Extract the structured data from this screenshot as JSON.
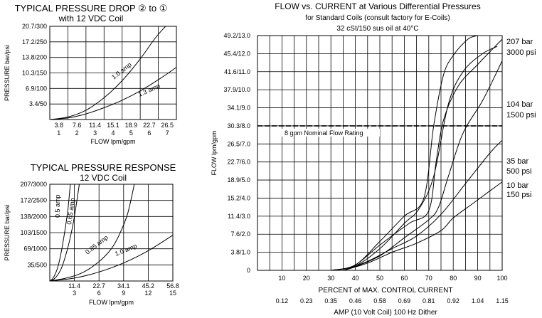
{
  "chart_data": [
    {
      "id": "pd",
      "type": "line",
      "title": "TYPICAL PRESSURE DROP ② to ①",
      "subtitle": "with 12 VDC Coil",
      "xlabel": "FLOW lpm/gpm",
      "ylabel": "PRESSURE bar/psi",
      "x_ticks_top": [
        "3.8",
        "7.6",
        "11.4",
        "15.1",
        "18.9",
        "22.7",
        "26.5"
      ],
      "x_ticks_bottom": [
        "1",
        "2",
        "3",
        "4",
        "5",
        "6",
        "7"
      ],
      "y_ticks": [
        "3.4/50",
        "6.9/100",
        "10.3/150",
        "13.8/200",
        "17.2/250",
        "20.7/300"
      ],
      "xlim": [
        0,
        7
      ],
      "ylim": [
        0,
        300
      ],
      "grid": true,
      "series": [
        {
          "name": "1.0 amp",
          "x": [
            0,
            1,
            2,
            3,
            4,
            5,
            5.8,
            6.4
          ],
          "y": [
            0,
            8,
            30,
            70,
            125,
            195,
            260,
            300
          ]
        },
        {
          "name": "1.3 amp",
          "x": [
            0,
            1,
            2,
            3,
            4,
            5,
            6,
            7
          ],
          "y": [
            0,
            5,
            18,
            38,
            62,
            92,
            128,
            168
          ]
        }
      ]
    },
    {
      "id": "pr",
      "type": "line",
      "title": "TYPICAL PRESSURE RESPONSE",
      "subtitle": "12 VDC Coil",
      "xlabel": "FLOW lpm/gpm",
      "ylabel": "PRESSURE bar/psi",
      "x_ticks_top": [
        "11.4",
        "22.7",
        "34.1",
        "45.2",
        "56.8"
      ],
      "x_ticks_bottom": [
        "3",
        "6",
        "9",
        "12",
        "15"
      ],
      "y_ticks": [
        "35/500",
        "69/1000",
        "103/1500",
        "138/2000",
        "172/2500",
        "207/3000"
      ],
      "xlim": [
        0,
        15
      ],
      "ylim": [
        0,
        3000
      ],
      "grid": true,
      "series": [
        {
          "name": "0.5 amp",
          "x": [
            0,
            0.3,
            0.6,
            1.0,
            1.4,
            1.8,
            2.2,
            2.5
          ],
          "y": [
            0,
            60,
            180,
            450,
            900,
            1500,
            2200,
            3000
          ]
        },
        {
          "name": "0.65 amp",
          "x": [
            0,
            0.5,
            1.0,
            1.5,
            2.0,
            2.5,
            3.0,
            3.6
          ],
          "y": [
            0,
            60,
            200,
            450,
            850,
            1350,
            2000,
            3000
          ]
        },
        {
          "name": "0.85 amp",
          "x": [
            0,
            2,
            4,
            6,
            7.5,
            8.5,
            9.5,
            10.3
          ],
          "y": [
            0,
            90,
            260,
            600,
            1000,
            1450,
            2100,
            3000
          ]
        },
        {
          "name": "1.0 amp",
          "x": [
            0,
            3,
            6,
            9,
            12,
            15
          ],
          "y": [
            0,
            90,
            280,
            560,
            940,
            1420
          ]
        }
      ]
    },
    {
      "id": "fc",
      "type": "line",
      "title": "FLOW vs. CURRENT at Various Differential Pressures",
      "subtitle": "for Standard Coils (consult factory for E-Coils)",
      "subtitle2": "32 cSt/150 sus oil at 40°C",
      "xlabel": "PERCENT of MAX. CONTROL CURRENT",
      "xlabel2": "AMP (10 Volt Coil) 100 Hz Dither",
      "ylabel": "FLOW lpm/gpm",
      "x_ticks": [
        "10",
        "20",
        "30",
        "40",
        "50",
        "60",
        "70",
        "80",
        "90",
        "100"
      ],
      "x_ticks_amp": [
        "0.12",
        "0.23",
        "0.35",
        "0.46",
        "0.58",
        "0.69",
        "0.81",
        "0.92",
        "1.04",
        "1.15"
      ],
      "y_ticks": [
        "0",
        "3.8/1.0",
        "7.6/2.0",
        "11.4/3.0",
        "15.2/4.0",
        "18.9/5.0",
        "22.7/6.0",
        "26.5/7.0",
        "30.3/8.0",
        "34.1/9.0",
        "37.9/10.0",
        "41.6/11.0",
        "45.4/12.0",
        "49.2/13.0"
      ],
      "xlim": [
        0,
        100
      ],
      "ylim": [
        0,
        13
      ],
      "grid": true,
      "reference_line": {
        "y": 8,
        "label": "8 gpm Nominal Flow Rating"
      },
      "pressure_labels": [
        {
          "bar": "207 bar",
          "psi": "3000 psi"
        },
        {
          "bar": "104 bar",
          "psi": "1500 psi"
        },
        {
          "bar": "35 bar",
          "psi": "500 psi"
        },
        {
          "bar": "10 bar",
          "psi": "150 psi"
        }
      ],
      "series": [
        {
          "x": [
            30,
            40,
            50,
            60,
            68,
            72,
            76,
            80,
            86,
            90
          ],
          "y": [
            0,
            0.3,
            1.6,
            3.0,
            4.0,
            8.0,
            10.8,
            11.9,
            12.8,
            13.0
          ]
        },
        {
          "x": [
            30,
            40,
            50,
            60,
            66,
            72,
            78,
            84,
            92,
            98
          ],
          "y": [
            0,
            0.25,
            1.2,
            2.6,
            3.4,
            5.2,
            9.2,
            11.0,
            12.0,
            12.4
          ]
        },
        {
          "x": [
            32,
            40,
            50,
            62,
            70,
            73,
            76,
            82,
            90,
            100
          ],
          "y": [
            0,
            0.3,
            1.4,
            2.6,
            3.3,
            6.0,
            8.3,
            10.2,
            11.4,
            12.8
          ]
        },
        {
          "x": [
            35,
            40,
            50,
            60,
            70,
            74,
            78,
            84,
            92,
            100
          ],
          "y": [
            0,
            0.2,
            0.8,
            1.8,
            2.8,
            3.5,
            5.2,
            7.6,
            9.4,
            11.6
          ]
        },
        {
          "x": [
            35,
            45,
            55,
            65,
            75,
            85,
            95,
            100
          ],
          "y": [
            0,
            0.5,
            1.2,
            1.9,
            3.1,
            4.8,
            6.5,
            7.2
          ]
        },
        {
          "x": [
            35,
            45,
            55,
            65,
            75,
            80,
            88,
            94,
            100
          ],
          "y": [
            0,
            0.4,
            1.0,
            1.5,
            2.2,
            2.9,
            3.7,
            4.3,
            4.9
          ]
        }
      ]
    }
  ]
}
